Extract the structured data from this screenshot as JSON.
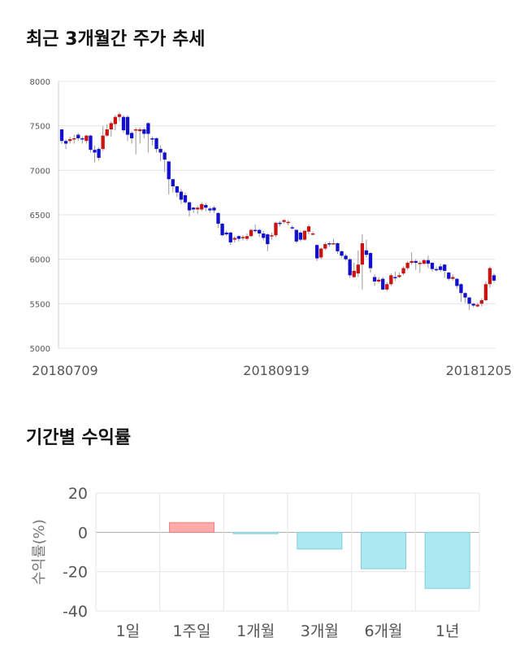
{
  "sections": {
    "price_title": "최근 3개월간 주가 추세",
    "return_title": "기간별 수익률"
  },
  "chart_data": [
    {
      "type": "candlestick",
      "title": "최근 3개월간 주가 추세",
      "ylim": [
        5000,
        8000
      ],
      "yticks": [
        5000,
        5500,
        6000,
        6500,
        7000,
        7500,
        8000
      ],
      "xtick_labels": [
        "20180709",
        "20180919",
        "20181205"
      ],
      "grid": true,
      "up_color": "#cc1111",
      "down_color": "#1111cc",
      "series": [
        [
          7460,
          7330,
          7460,
          7300
        ],
        [
          7330,
          7300,
          7350,
          7240
        ],
        [
          7330,
          7350,
          7380,
          7300
        ],
        [
          7350,
          7360,
          7400,
          7300
        ],
        [
          7400,
          7360,
          7420,
          7330
        ],
        [
          7360,
          7350,
          7380,
          7300
        ],
        [
          7330,
          7390,
          7400,
          7300
        ],
        [
          7390,
          7230,
          7400,
          7200
        ],
        [
          7230,
          7200,
          7280,
          7090
        ],
        [
          7240,
          7140,
          7260,
          7110
        ],
        [
          7240,
          7390,
          7500,
          7220
        ],
        [
          7390,
          7460,
          7520,
          7380
        ],
        [
          7460,
          7530,
          7550,
          7380
        ],
        [
          7520,
          7600,
          7620,
          7450
        ],
        [
          7600,
          7630,
          7650,
          7550
        ],
        [
          7600,
          7450,
          7620,
          7420
        ],
        [
          7600,
          7400,
          7620,
          7330
        ],
        [
          7420,
          7360,
          7440,
          7300
        ],
        [
          7450,
          7460,
          7480,
          7180
        ],
        [
          7440,
          7460,
          7480,
          7300
        ],
        [
          7460,
          7410,
          7480,
          7360
        ],
        [
          7530,
          7410,
          7540,
          7200
        ],
        [
          7360,
          7350,
          7380,
          7280
        ],
        [
          7360,
          7240,
          7370,
          7200
        ],
        [
          7240,
          7200,
          7280,
          7100
        ],
        [
          7200,
          7120,
          7220,
          6980
        ],
        [
          7100,
          6900,
          7100,
          6730
        ],
        [
          6900,
          6820,
          6900,
          6750
        ],
        [
          6820,
          6750,
          6830,
          6700
        ],
        [
          6760,
          6670,
          6790,
          6620
        ],
        [
          6720,
          6640,
          6750,
          6620
        ],
        [
          6640,
          6550,
          6650,
          6480
        ],
        [
          6580,
          6560,
          6590,
          6520
        ],
        [
          6560,
          6580,
          6600,
          6510
        ],
        [
          6560,
          6620,
          6640,
          6540
        ],
        [
          6610,
          6580,
          6630,
          6540
        ],
        [
          6570,
          6550,
          6590,
          6520
        ],
        [
          6580,
          6550,
          6600,
          6520
        ],
        [
          6520,
          6400,
          6530,
          6350
        ],
        [
          6400,
          6270,
          6410,
          6260
        ],
        [
          6300,
          6280,
          6320,
          6260
        ],
        [
          6300,
          6190,
          6310,
          6160
        ],
        [
          6220,
          6240,
          6260,
          6190
        ],
        [
          6260,
          6230,
          6270,
          6200
        ],
        [
          6250,
          6250,
          6270,
          6210
        ],
        [
          6230,
          6260,
          6290,
          6210
        ],
        [
          6260,
          6330,
          6340,
          6250
        ],
        [
          6330,
          6320,
          6390,
          6300
        ],
        [
          6330,
          6290,
          6340,
          6250
        ],
        [
          6290,
          6240,
          6320,
          6210
        ],
        [
          6280,
          6170,
          6290,
          6090
        ],
        [
          6260,
          6270,
          6300,
          6220
        ],
        [
          6270,
          6410,
          6420,
          6250
        ],
        [
          6410,
          6400,
          6430,
          6370
        ],
        [
          6420,
          6440,
          6450,
          6400
        ],
        [
          6420,
          6420,
          6440,
          6380
        ],
        [
          6360,
          6350,
          6380,
          6330
        ],
        [
          6330,
          6200,
          6340,
          6180
        ],
        [
          6300,
          6220,
          6320,
          6200
        ],
        [
          6220,
          6320,
          6330,
          6210
        ],
        [
          6310,
          6370,
          6390,
          6280
        ],
        [
          6280,
          6290,
          6310,
          6270
        ],
        [
          6160,
          6010,
          6170,
          5980
        ],
        [
          6020,
          6120,
          6130,
          6000
        ],
        [
          6120,
          6170,
          6190,
          6100
        ],
        [
          6180,
          6170,
          6200,
          6140
        ],
        [
          6180,
          6180,
          6230,
          6170
        ],
        [
          6180,
          6090,
          6190,
          6060
        ],
        [
          6090,
          6040,
          6100,
          6020
        ],
        [
          6040,
          6000,
          6060,
          5980
        ],
        [
          6000,
          5820,
          6010,
          5790
        ],
        [
          5800,
          5870,
          5960,
          5790
        ],
        [
          5840,
          5940,
          6100,
          5800
        ],
        [
          5940,
          6180,
          6280,
          5660
        ],
        [
          6100,
          6050,
          6220,
          6020
        ],
        [
          6070,
          5900,
          6080,
          5850
        ],
        [
          5800,
          5750,
          5830,
          5700
        ],
        [
          5750,
          5770,
          5800,
          5730
        ],
        [
          5780,
          5660,
          5800,
          5650
        ],
        [
          5660,
          5720,
          5740,
          5640
        ],
        [
          5720,
          5820,
          5840,
          5700
        ],
        [
          5800,
          5790,
          5860,
          5760
        ],
        [
          5800,
          5820,
          5850,
          5790
        ],
        [
          5840,
          5900,
          5920,
          5820
        ],
        [
          5900,
          5960,
          5980,
          5880
        ],
        [
          5960,
          5980,
          6080,
          5940
        ],
        [
          5980,
          5960,
          6000,
          5880
        ],
        [
          5950,
          5960,
          5980,
          5850
        ],
        [
          5950,
          5990,
          6000,
          5940
        ],
        [
          5990,
          5950,
          6040,
          5900
        ],
        [
          5960,
          5890,
          5970,
          5860
        ],
        [
          5890,
          5880,
          5920,
          5860
        ],
        [
          5920,
          5880,
          5950,
          5860
        ],
        [
          5940,
          5870,
          5950,
          5790
        ],
        [
          5850,
          5780,
          5860,
          5760
        ],
        [
          5780,
          5800,
          5830,
          5760
        ],
        [
          5780,
          5700,
          5790,
          5670
        ],
        [
          5720,
          5620,
          5730,
          5520
        ],
        [
          5620,
          5570,
          5630,
          5510
        ],
        [
          5570,
          5500,
          5580,
          5430
        ],
        [
          5500,
          5480,
          5510,
          5460
        ],
        [
          5470,
          5490,
          5510,
          5460
        ],
        [
          5500,
          5540,
          5560,
          5470
        ],
        [
          5540,
          5720,
          5750,
          5530
        ],
        [
          5720,
          5900,
          5920,
          5680
        ],
        [
          5820,
          5760,
          5840,
          5740
        ]
      ]
    },
    {
      "type": "bar",
      "title": "기간별 수익률",
      "ylabel": "수익률(%)",
      "ylim": [
        -40,
        20
      ],
      "yticks": [
        20,
        0,
        -20,
        -40
      ],
      "categories": [
        "1일",
        "1주일",
        "1개월",
        "3개월",
        "6개월",
        "1년"
      ],
      "values": [
        0,
        5.0,
        -0.7,
        -8.5,
        -18.5,
        -28.5
      ],
      "positive_color": "#ffaaaa",
      "negative_color": "#aae8f2",
      "grid": true
    }
  ]
}
